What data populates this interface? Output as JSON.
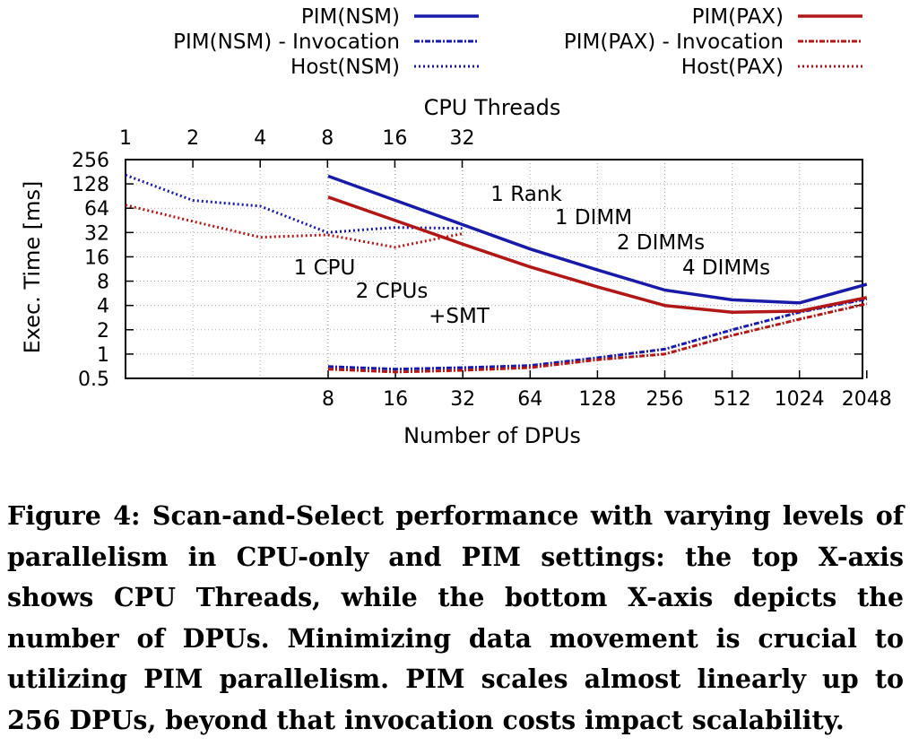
{
  "chart_data": {
    "type": "line",
    "top_axis_label": "CPU Threads",
    "top_axis_ticks": [
      "1",
      "2",
      "4",
      "8",
      "16",
      "32"
    ],
    "xlabel": "Number of DPUs",
    "x_ticks": [
      "8",
      "16",
      "32",
      "64",
      "128",
      "256",
      "512",
      "1024",
      "2048"
    ],
    "ylabel": "Exec. Time [ms]",
    "y_ticks": [
      "0.5",
      "1",
      "2",
      "4",
      "8",
      "16",
      "32",
      "64",
      "128",
      "256"
    ],
    "ylim": [
      0.5,
      256
    ],
    "y_scale": "log2",
    "legend_position": "top",
    "series": [
      {
        "name": "PIM(NSM)",
        "axis": "bottom",
        "color": "#1a1aa8",
        "style": "solid",
        "x": [
          8,
          16,
          32,
          64,
          128,
          256,
          512,
          1024,
          2048
        ],
        "y": [
          160,
          80,
          40,
          20,
          11,
          6.2,
          4.7,
          4.3,
          7.3
        ]
      },
      {
        "name": "PIM(NSM) - Invocation",
        "axis": "bottom",
        "color": "#1a1aa8",
        "style": "dashdot",
        "x": [
          8,
          16,
          32,
          64,
          128,
          256,
          512,
          1024,
          2048
        ],
        "y": [
          0.7,
          0.65,
          0.68,
          0.72,
          0.9,
          1.15,
          2.0,
          3.3,
          4.8
        ]
      },
      {
        "name": "Host(NSM)",
        "axis": "top",
        "color": "#1a1aa8",
        "style": "dotted",
        "x": [
          1,
          2,
          4,
          8,
          16,
          32
        ],
        "y": [
          165,
          80,
          68,
          32,
          37,
          36
        ]
      },
      {
        "name": "PIM(PAX)",
        "axis": "bottom",
        "color": "#b01818",
        "style": "solid",
        "x": [
          8,
          16,
          32,
          64,
          128,
          256,
          512,
          1024,
          2048
        ],
        "y": [
          88,
          45,
          23,
          12,
          6.8,
          4.0,
          3.3,
          3.4,
          5.0
        ]
      },
      {
        "name": "PIM(PAX) - Invocation",
        "axis": "bottom",
        "color": "#b01818",
        "style": "dashdot",
        "x": [
          8,
          16,
          32,
          64,
          128,
          256,
          512,
          1024,
          2048
        ],
        "y": [
          0.65,
          0.6,
          0.63,
          0.68,
          0.85,
          1.0,
          1.7,
          2.7,
          4.2
        ]
      },
      {
        "name": "Host(PAX)",
        "axis": "top",
        "color": "#b01818",
        "style": "dotted",
        "x": [
          1,
          2,
          4,
          8,
          16,
          32
        ],
        "y": [
          70,
          44,
          28,
          30,
          21,
          31
        ]
      }
    ],
    "annotations": [
      "1 Rank",
      "1 DIMM",
      "2 DIMMs",
      "4 DIMMs",
      "1 CPU",
      "2 CPUs",
      "+SMT"
    ]
  },
  "caption": "Figure 4: Scan-and-Select performance with varying levels of parallelism in CPU-only and PIM settings: the top X-axis shows CPU Threads, while the bottom X-axis depicts the number of DPUs. Minimizing data movement is crucial to utilizing PIM parallelism. PIM scales almost linearly up to 256 DPUs, beyond that invocation costs impact scalability."
}
